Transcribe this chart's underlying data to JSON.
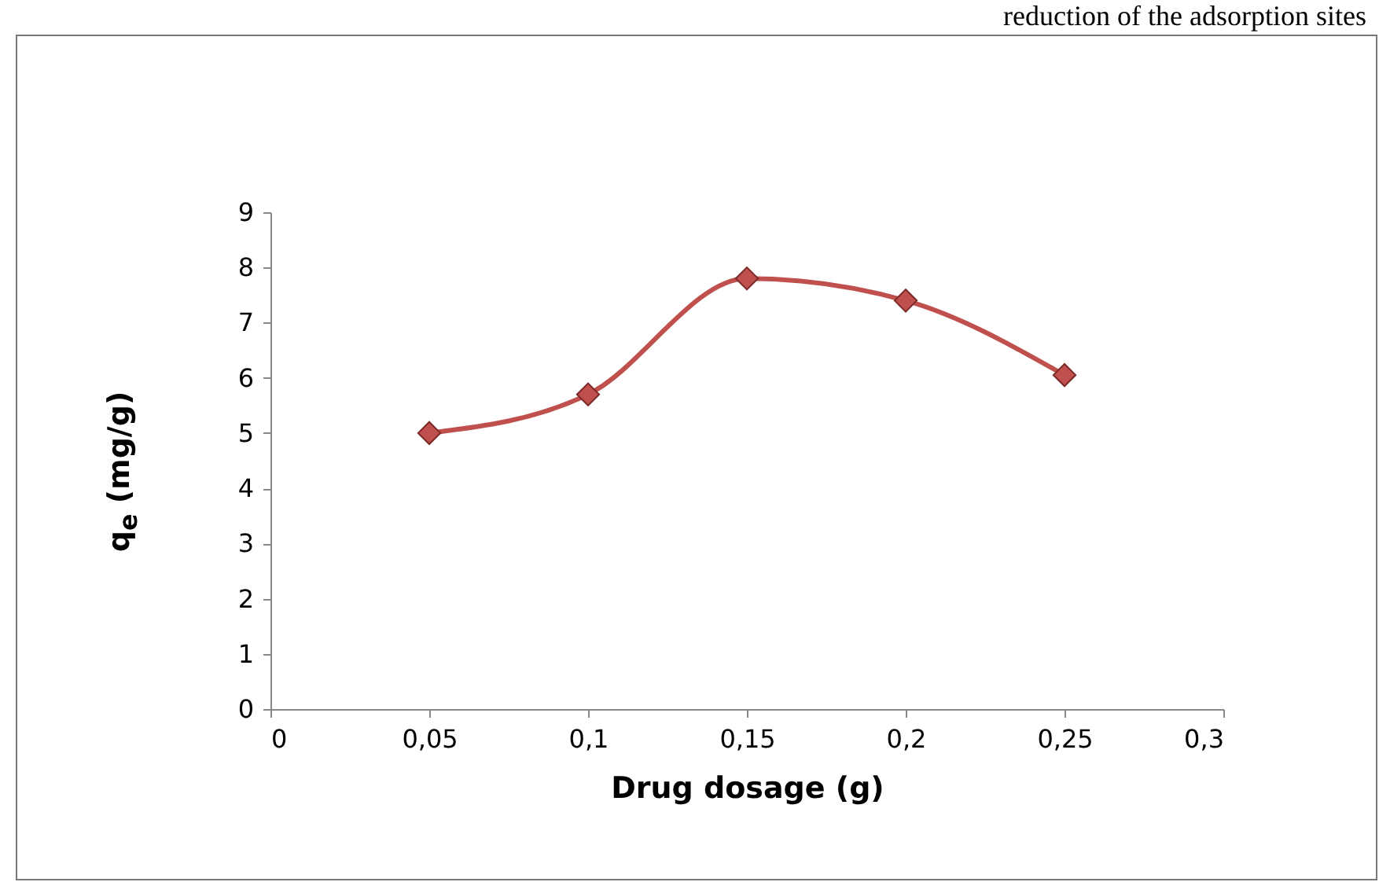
{
  "chart_data": {
    "type": "line",
    "xlabel": "Drug dosage (g)",
    "ylabel": "q$_{e}$ (mg/g)",
    "x": [
      0.05,
      0.1,
      0.15,
      0.2,
      0.25
    ],
    "series": [
      {
        "color": "#c0504d",
        "values": [
          5,
          5.7,
          7.8,
          7.4,
          6.05
        ]
      }
    ],
    "xlim": [
      0,
      0.3
    ],
    "xticks": [
      0,
      {
        "value": 0.05,
        "label": "0,05"
      },
      {
        "value": 0.1,
        "label": "0,1"
      },
      {
        "value": 0.15,
        "label": "0,15"
      },
      {
        "value": 0.2,
        "label": "0,2"
      },
      {
        "value": 0.25,
        "label": "0,25"
      },
      {
        "value": 0.3,
        "label": "0,3"
      }
    ],
    "ylim": [
      0,
      9
    ],
    "yticks": [
      0,
      1,
      2,
      3,
      4,
      5,
      6,
      7,
      8,
      9
    ],
    "marker": "diamond",
    "line_style": "solid",
    "annotations": [
      "reduction of the adsorption sites"
    ]
  }
}
